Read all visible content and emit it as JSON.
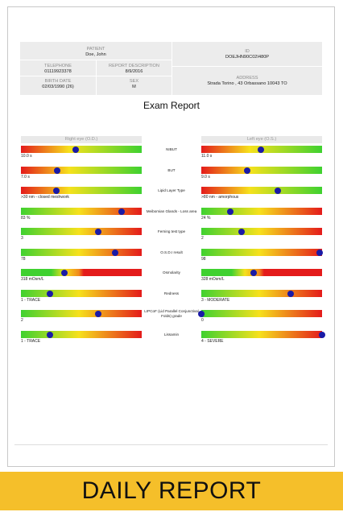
{
  "patient_info": {
    "patient_label": "PATIENT",
    "patient_name": "Doe, John",
    "id_label": "ID",
    "id_value": "DOEJHN90C02I480P",
    "telephone_label": "TELEPHONE",
    "telephone_value": "01119923378",
    "report_desc_label": "REPORT DESCRIPTION",
    "report_desc_value": "8/9/2016",
    "birth_label": "BIRTH DATE",
    "birth_value": "02/03/1990 (26)",
    "sex_label": "SEX",
    "sex_value": "M",
    "address_label": "ADDRESS",
    "address_value": "Strada Torino , 43 Orbassano 10043 TO"
  },
  "report_title": "Exam Report",
  "right_eye_header": "Right eye (O.D.)",
  "left_eye_header": "Left eye (O.S.)",
  "colors": {
    "banner": "#f5bf2a",
    "marker": "#1a1aa6"
  },
  "rows": [
    {
      "label": "NIBUT",
      "gradient": "red-green",
      "right_value": "10.0 s",
      "right_level": 0.45,
      "left_value": "11.0 s",
      "left_level": 0.49
    },
    {
      "label": "BUT",
      "gradient": "red-green",
      "right_value": "7.0 s",
      "right_level": 0.3,
      "left_value": "9.0 s",
      "left_level": 0.38
    },
    {
      "label": "Lipid Layer Type",
      "gradient": "red-green",
      "right_value": ">30 nm - closed meshwork",
      "right_level": 0.29,
      "left_value": ">80 nm - amorphous",
      "left_level": 0.63
    },
    {
      "label": "Meibomian Glands - Loss area",
      "gradient": "green-red",
      "right_value": "83 %",
      "right_level": 0.83,
      "left_value": "24 %",
      "left_level": 0.24
    },
    {
      "label": "Ferning test type",
      "gradient": "green-red",
      "right_value": "3",
      "right_level": 0.64,
      "left_value": "2",
      "left_level": 0.33
    },
    {
      "label": "O.S.D.I result",
      "gradient": "green-red",
      "right_value": "78",
      "right_level": 0.78,
      "left_value": "98",
      "left_level": 0.98
    },
    {
      "label": "Osmolarity",
      "gradient": "osmolarity",
      "right_value": "318 mOsm/L",
      "right_level": 0.36,
      "left_value": "328 mOsm/L",
      "left_level": 0.43
    },
    {
      "label": "Redness",
      "gradient": "green-red",
      "right_value": "1 - TRACE",
      "right_level": 0.24,
      "left_value": "3 - MODERATE",
      "left_level": 0.74
    },
    {
      "label": "LIPCoF (Lid Parallel Conjunctival Folds) grade",
      "gradient": "green-red",
      "right_value": "2",
      "right_level": 0.64,
      "left_value": "0",
      "left_level": 0.0
    },
    {
      "label": "Lissamin",
      "gradient": "green-red",
      "right_value": "1 - TRACE",
      "right_level": 0.24,
      "left_value": "4 - SEVERE",
      "left_level": 1.0
    }
  ],
  "banner_text": "DAILY REPORT"
}
